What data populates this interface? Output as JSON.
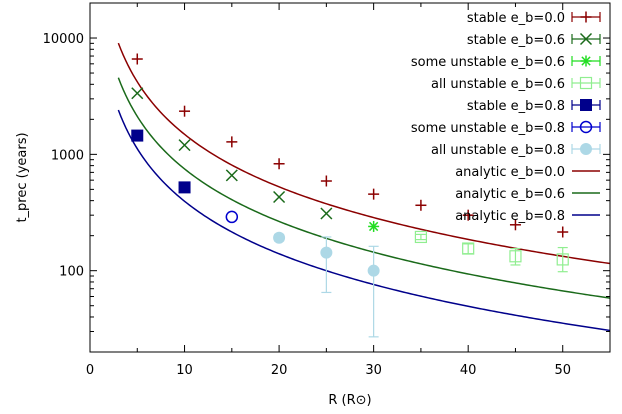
{
  "chart_data": {
    "type": "scatter",
    "xlabel": "R (R⊙)",
    "ylabel": "t_prec (years)",
    "xlim": [
      0,
      55
    ],
    "ylim": [
      20,
      20000
    ],
    "yscale": "log",
    "grid": false,
    "legend_position": "top-right",
    "x_ticks": [
      0,
      10,
      20,
      30,
      40,
      50
    ],
    "x_tick_labels": [
      "0",
      "10",
      "20",
      "30",
      "40",
      "50"
    ],
    "y_ticks": [
      100,
      1000,
      10000
    ],
    "y_tick_labels": [
      "100",
      "1000",
      "10000"
    ],
    "series": [
      {
        "name": "stable e_b=0.0",
        "marker": "plus",
        "color": "#8b0000",
        "points": [
          [
            5,
            6600
          ],
          [
            10,
            2350
          ],
          [
            15,
            1280
          ],
          [
            20,
            830
          ],
          [
            25,
            590
          ],
          [
            30,
            455
          ],
          [
            35,
            365
          ],
          [
            40,
            300
          ],
          [
            45,
            248
          ],
          [
            50,
            215
          ]
        ]
      },
      {
        "name": "stable e_b=0.6",
        "marker": "cross",
        "color": "#1a6a1a",
        "points": [
          [
            5,
            3350
          ],
          [
            10,
            1200
          ],
          [
            15,
            660
          ],
          [
            20,
            430
          ],
          [
            25,
            310
          ]
        ]
      },
      {
        "name": "some unstable e_b=0.6",
        "marker": "star",
        "color": "#22dd22",
        "points": [
          [
            30,
            240
          ]
        ]
      },
      {
        "name": "all unstable e_b=0.6",
        "marker": "open-square",
        "color": "#90ee90",
        "points": [
          [
            35,
            195,
            185,
            205
          ],
          [
            40,
            155,
            140,
            170
          ],
          [
            45,
            133,
            112,
            155
          ],
          [
            50,
            125,
            98,
            158
          ]
        ]
      },
      {
        "name": "stable e_b=0.8",
        "marker": "filled-square",
        "color": "#00008b",
        "points": [
          [
            5,
            1450
          ],
          [
            10,
            520
          ]
        ]
      },
      {
        "name": "some unstable e_b=0.8",
        "marker": "open-circle",
        "color": "#0000cd",
        "points": [
          [
            15,
            290
          ]
        ]
      },
      {
        "name": "all unstable e_b=0.8",
        "marker": "filled-circle",
        "color": "#add8e6",
        "points": [
          [
            20,
            192,
            180,
            205
          ],
          [
            25,
            143,
            65,
            195
          ],
          [
            30,
            100,
            27,
            162
          ]
        ]
      }
    ],
    "curves": [
      {
        "name": "analytic e_b=0.0",
        "color": "#8b0000",
        "coefficient": 47000,
        "exponent": 1.5,
        "x_range": [
          3,
          55
        ]
      },
      {
        "name": "analytic e_b=0.6",
        "color": "#1a6a1a",
        "coefficient": 23700,
        "exponent": 1.5,
        "x_range": [
          3,
          55
        ]
      },
      {
        "name": "analytic e_b=0.8",
        "color": "#00008b",
        "coefficient": 12500,
        "exponent": 1.5,
        "x_range": [
          3,
          55
        ]
      }
    ]
  }
}
